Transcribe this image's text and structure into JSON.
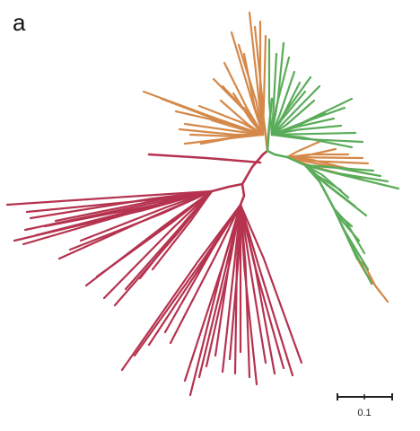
{
  "figure": {
    "panel_label": "a",
    "scale_bar": {
      "label": "0.1"
    }
  },
  "colors": {
    "red_clade": "#b5334f",
    "orange_clade": "#d4894a",
    "green_clade": "#5aac5a",
    "scale_bar": "#222222"
  },
  "clades": [
    {
      "id": "red",
      "color_key": "red_clade"
    },
    {
      "id": "orange",
      "color_key": "orange_clade"
    },
    {
      "id": "green",
      "color_key": "green_clade"
    }
  ]
}
